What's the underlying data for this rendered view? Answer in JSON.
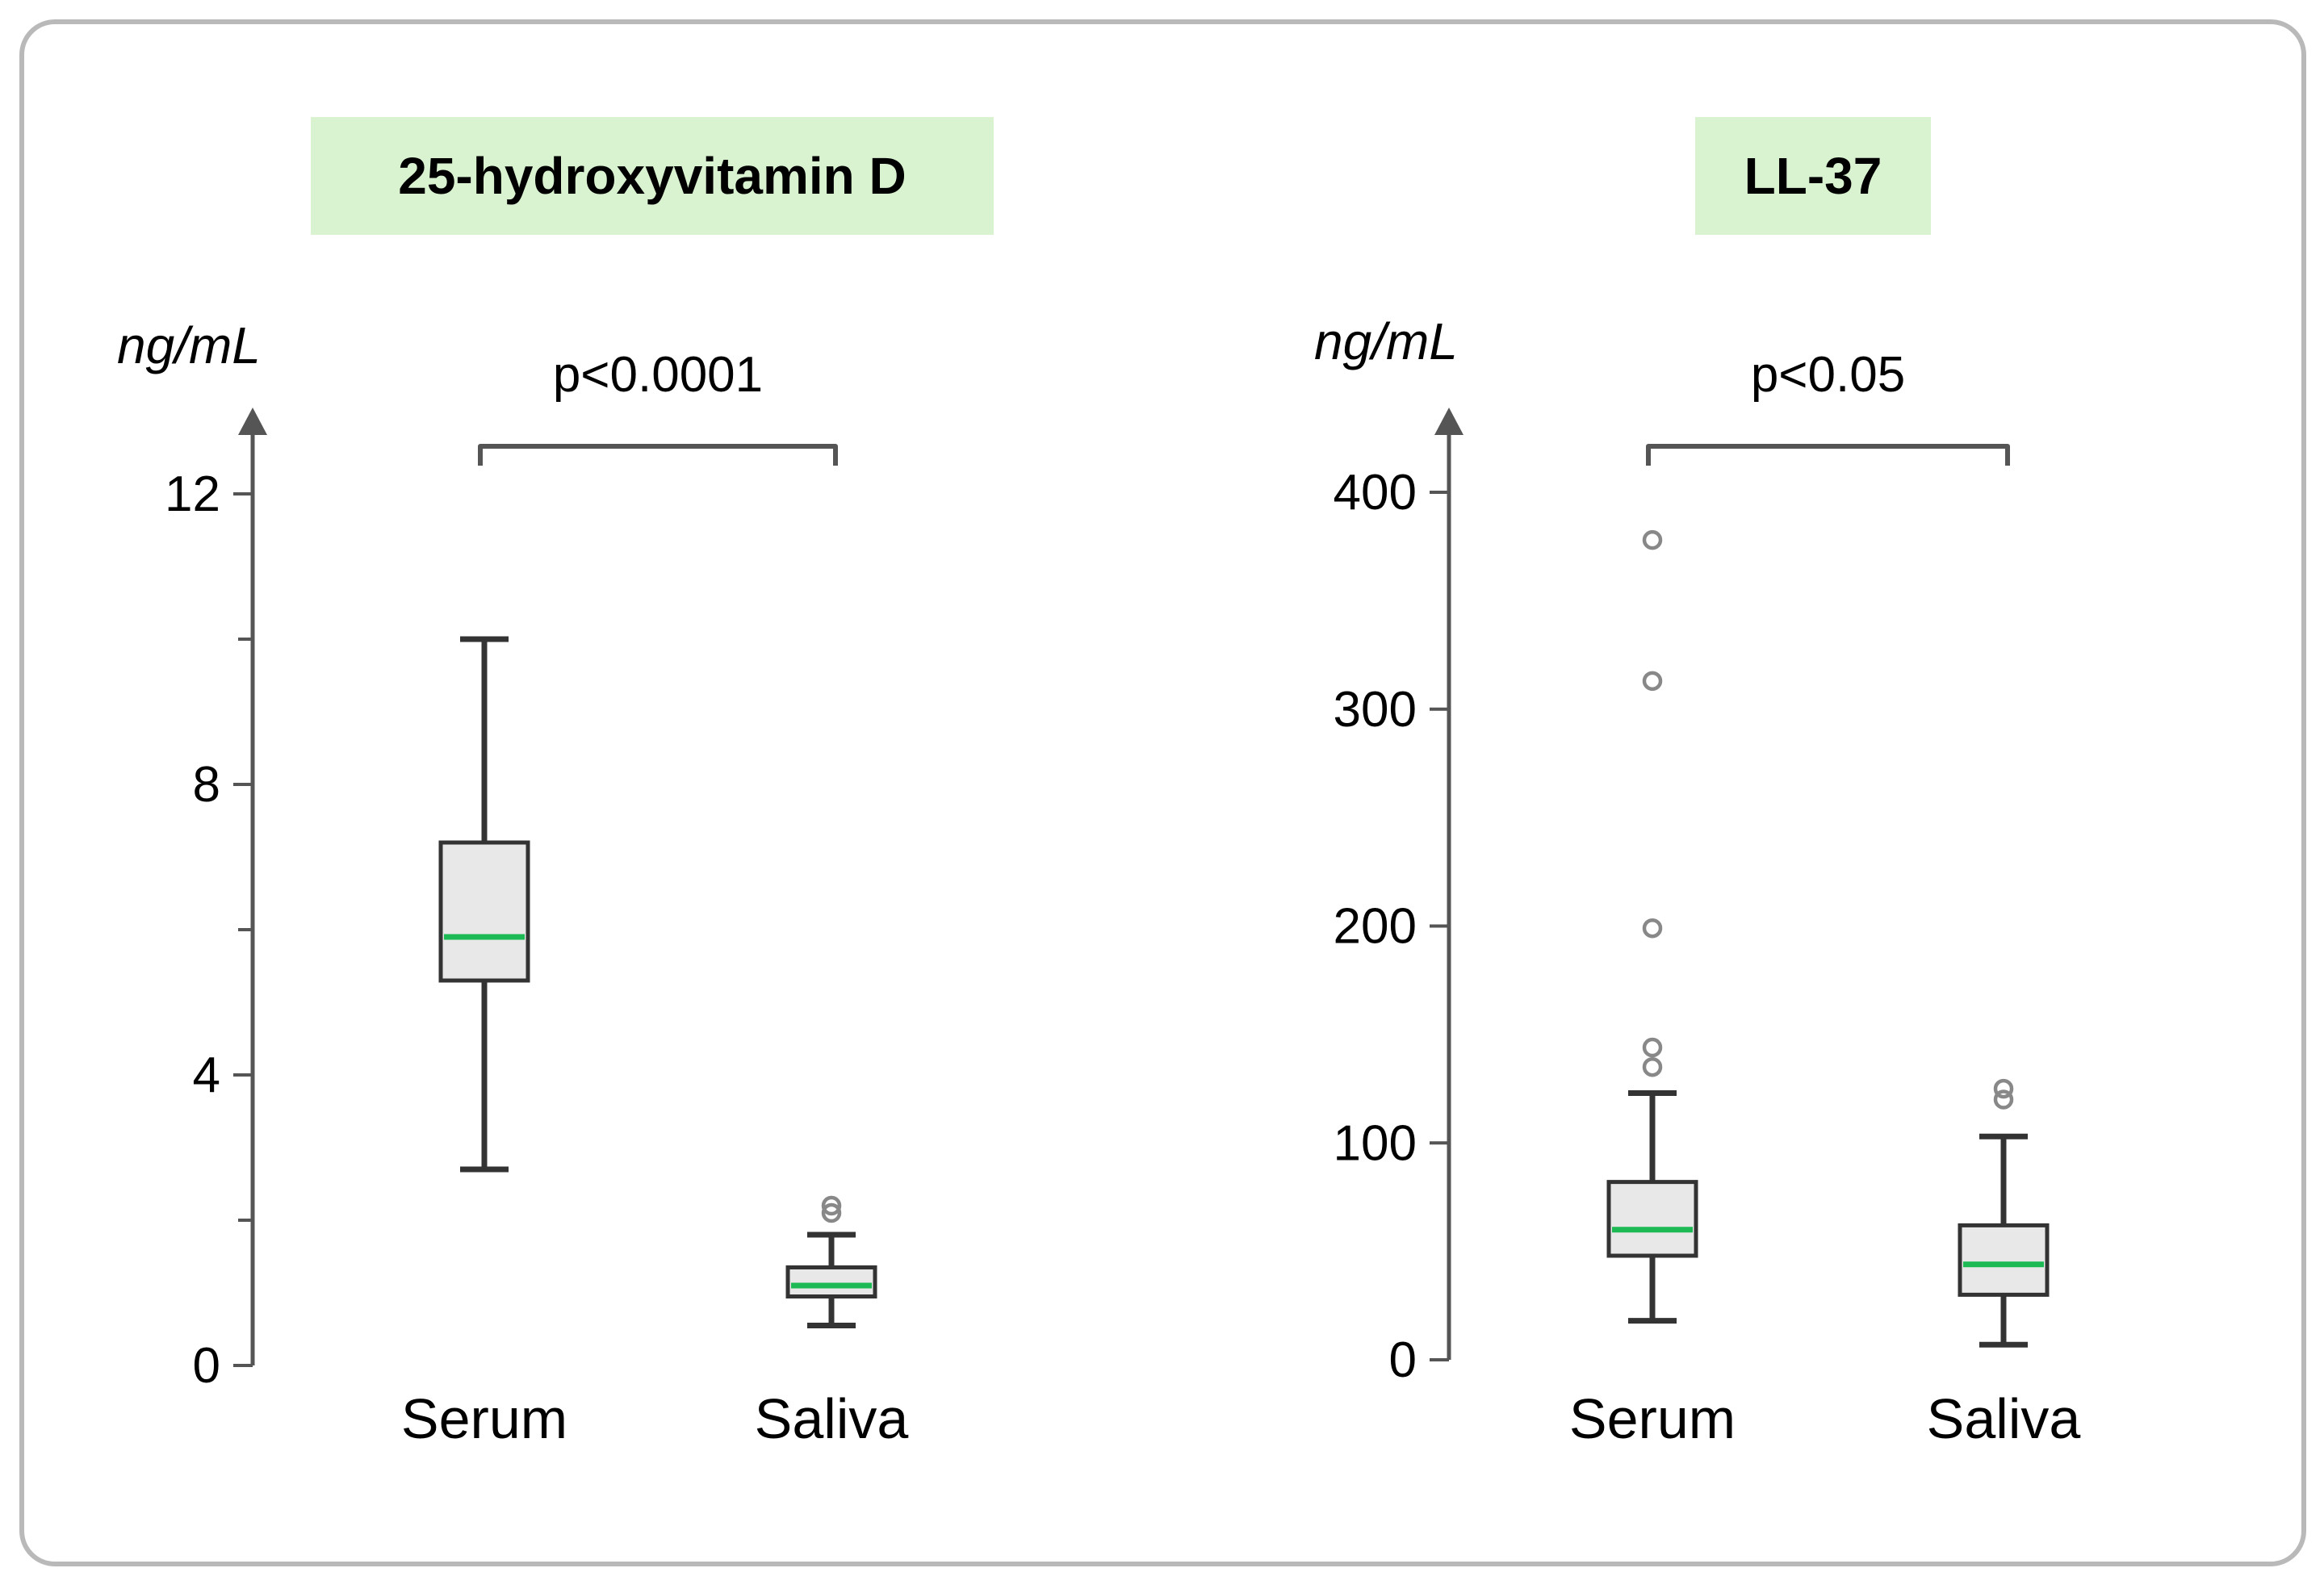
{
  "chart_data": [
    {
      "type": "box",
      "title": "25-hydroxyvitamin D",
      "ylabel": "ng/mL",
      "ylim": [
        0,
        12
      ],
      "yticks": [
        0,
        4,
        8,
        12
      ],
      "minor_yticks": [
        2,
        6,
        10
      ],
      "categories": [
        "Serum",
        "Saliva"
      ],
      "boxes": [
        {
          "category": "Serum",
          "whisker_low": 2.7,
          "q1": 5.3,
          "median": 5.9,
          "q3": 7.2,
          "whisker_high": 10.0,
          "outliers": []
        },
        {
          "category": "Saliva",
          "whisker_low": 0.55,
          "q1": 0.95,
          "median": 1.1,
          "q3": 1.35,
          "whisker_high": 1.8,
          "outliers": [
            2.1,
            2.2
          ]
        }
      ],
      "annotation": "p<0.0001"
    },
    {
      "type": "box",
      "title": "LL-37",
      "ylabel": "ng/mL",
      "ylim": [
        0,
        400
      ],
      "yticks": [
        0,
        100,
        200,
        300,
        400
      ],
      "categories": [
        "Serum",
        "Saliva"
      ],
      "boxes": [
        {
          "category": "Serum",
          "whisker_low": 18,
          "q1": 48,
          "median": 60,
          "q3": 82,
          "whisker_high": 123,
          "outliers": [
            135,
            144,
            199,
            313,
            378
          ]
        },
        {
          "category": "Saliva",
          "whisker_low": 7,
          "q1": 30,
          "median": 44,
          "q3": 62,
          "whisker_high": 103,
          "outliers": [
            120,
            125
          ]
        }
      ],
      "annotation": "p<0.05"
    }
  ],
  "colors": {
    "box_fill": "#e8e8e8",
    "box_stroke": "#333333",
    "median": "#1db954",
    "outlier": "#888888",
    "axis": "#555555",
    "title_bg": "#d9f2d0",
    "frame_border": "#b9b9b9"
  }
}
